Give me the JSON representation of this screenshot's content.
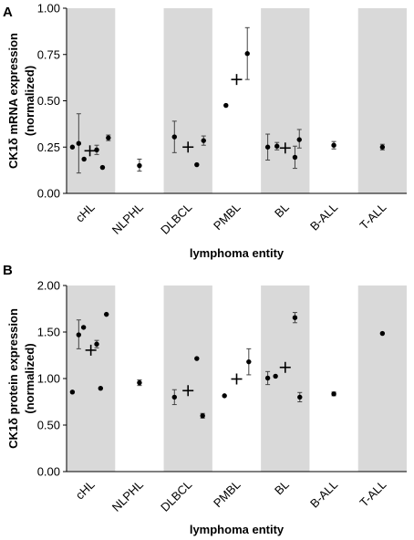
{
  "chart_data": [
    {
      "type": "scatter",
      "panel": "A",
      "ylabel": "CK1δ mRNA expression",
      "ylabel_sub": "(normalized)",
      "xlabel": "lymphoma entity",
      "ylim": [
        0,
        1
      ],
      "yticks": [
        "0.00",
        "0.25",
        "0.50",
        "0.75",
        "1.00"
      ],
      "categories": [
        "cHL",
        "NLPHL",
        "DLBCL",
        "PMBL",
        "BL",
        "B-ALL",
        "T-ALL"
      ],
      "shaded": [
        true,
        false,
        true,
        false,
        true,
        false,
        true
      ],
      "points": [
        {
          "c": 0,
          "o": -0.38,
          "y": 0.25
        },
        {
          "c": 0,
          "o": -0.25,
          "y": 0.27,
          "lo": 0.11,
          "hi": 0.43
        },
        {
          "c": 0,
          "o": -0.14,
          "y": 0.185
        },
        {
          "c": 0,
          "o": 0.12,
          "y": 0.235,
          "lo": 0.21,
          "hi": 0.26
        },
        {
          "c": 0,
          "o": 0.24,
          "y": 0.14
        },
        {
          "c": 0,
          "o": 0.36,
          "y": 0.3,
          "lo": 0.285,
          "hi": 0.315
        },
        {
          "c": 1,
          "o": 0.0,
          "y": 0.15,
          "lo": 0.12,
          "hi": 0.185
        },
        {
          "c": 2,
          "o": -0.28,
          "y": 0.305,
          "lo": 0.22,
          "hi": 0.39
        },
        {
          "c": 2,
          "o": 0.18,
          "y": 0.155
        },
        {
          "c": 2,
          "o": 0.32,
          "y": 0.285,
          "lo": 0.26,
          "hi": 0.31
        },
        {
          "c": 3,
          "o": -0.22,
          "y": 0.475
        },
        {
          "c": 3,
          "o": 0.22,
          "y": 0.755,
          "lo": 0.615,
          "hi": 0.895
        },
        {
          "c": 4,
          "o": -0.36,
          "y": 0.25,
          "lo": 0.18,
          "hi": 0.32
        },
        {
          "c": 4,
          "o": -0.17,
          "y": 0.255,
          "lo": 0.235,
          "hi": 0.275
        },
        {
          "c": 4,
          "o": 0.2,
          "y": 0.195,
          "lo": 0.135,
          "hi": 0.255
        },
        {
          "c": 4,
          "o": 0.29,
          "y": 0.29,
          "lo": 0.245,
          "hi": 0.345
        },
        {
          "c": 5,
          "o": 0.0,
          "y": 0.26,
          "lo": 0.24,
          "hi": 0.28
        },
        {
          "c": 6,
          "o": 0.0,
          "y": 0.25,
          "lo": 0.235,
          "hi": 0.265
        }
      ],
      "means": [
        {
          "c": 0,
          "o": -0.02,
          "y": 0.23
        },
        {
          "c": 2,
          "o": 0.0,
          "y": 0.25
        },
        {
          "c": 3,
          "o": 0.0,
          "y": 0.615
        },
        {
          "c": 4,
          "o": 0.0,
          "y": 0.245
        }
      ]
    },
    {
      "type": "scatter",
      "panel": "B",
      "ylabel": "CK1δ protein expression",
      "ylabel_sub": "(normalized)",
      "xlabel": "lymphoma entity",
      "ylim": [
        0,
        2
      ],
      "yticks": [
        "0.00",
        "0.50",
        "1.00",
        "1.50",
        "2.00"
      ],
      "categories": [
        "cHL",
        "NLPHL",
        "DLBCL",
        "PMBL",
        "BL",
        "B-ALL",
        "T-ALL"
      ],
      "shaded": [
        true,
        false,
        true,
        false,
        true,
        false,
        true
      ],
      "points": [
        {
          "c": 0,
          "o": -0.38,
          "y": 0.855
        },
        {
          "c": 0,
          "o": -0.25,
          "y": 1.47,
          "lo": 1.32,
          "hi": 1.63
        },
        {
          "c": 0,
          "o": -0.15,
          "y": 1.55
        },
        {
          "c": 0,
          "o": 0.12,
          "y": 1.37,
          "lo": 1.33,
          "hi": 1.41
        },
        {
          "c": 0,
          "o": 0.2,
          "y": 0.895
        },
        {
          "c": 0,
          "o": 0.32,
          "y": 1.69
        },
        {
          "c": 1,
          "o": 0.0,
          "y": 0.955,
          "lo": 0.925,
          "hi": 0.985
        },
        {
          "c": 2,
          "o": -0.28,
          "y": 0.8,
          "lo": 0.72,
          "hi": 0.88
        },
        {
          "c": 2,
          "o": 0.18,
          "y": 1.215
        },
        {
          "c": 2,
          "o": 0.3,
          "y": 0.6,
          "lo": 0.575,
          "hi": 0.625
        },
        {
          "c": 3,
          "o": -0.25,
          "y": 0.815
        },
        {
          "c": 3,
          "o": 0.25,
          "y": 1.18,
          "lo": 1.04,
          "hi": 1.32
        },
        {
          "c": 4,
          "o": -0.36,
          "y": 1.005,
          "lo": 0.935,
          "hi": 1.075
        },
        {
          "c": 4,
          "o": -0.2,
          "y": 1.025
        },
        {
          "c": 4,
          "o": 0.2,
          "y": 1.655,
          "lo": 1.6,
          "hi": 1.71
        },
        {
          "c": 4,
          "o": 0.3,
          "y": 0.8,
          "lo": 0.75,
          "hi": 0.85
        },
        {
          "c": 5,
          "o": 0.0,
          "y": 0.835,
          "lo": 0.815,
          "hi": 0.855
        },
        {
          "c": 6,
          "o": 0.0,
          "y": 1.485
        }
      ],
      "means": [
        {
          "c": 0,
          "o": 0.0,
          "y": 1.305
        },
        {
          "c": 2,
          "o": 0.0,
          "y": 0.87
        },
        {
          "c": 3,
          "o": 0.0,
          "y": 0.995
        },
        {
          "c": 4,
          "o": 0.0,
          "y": 1.12
        }
      ]
    }
  ]
}
